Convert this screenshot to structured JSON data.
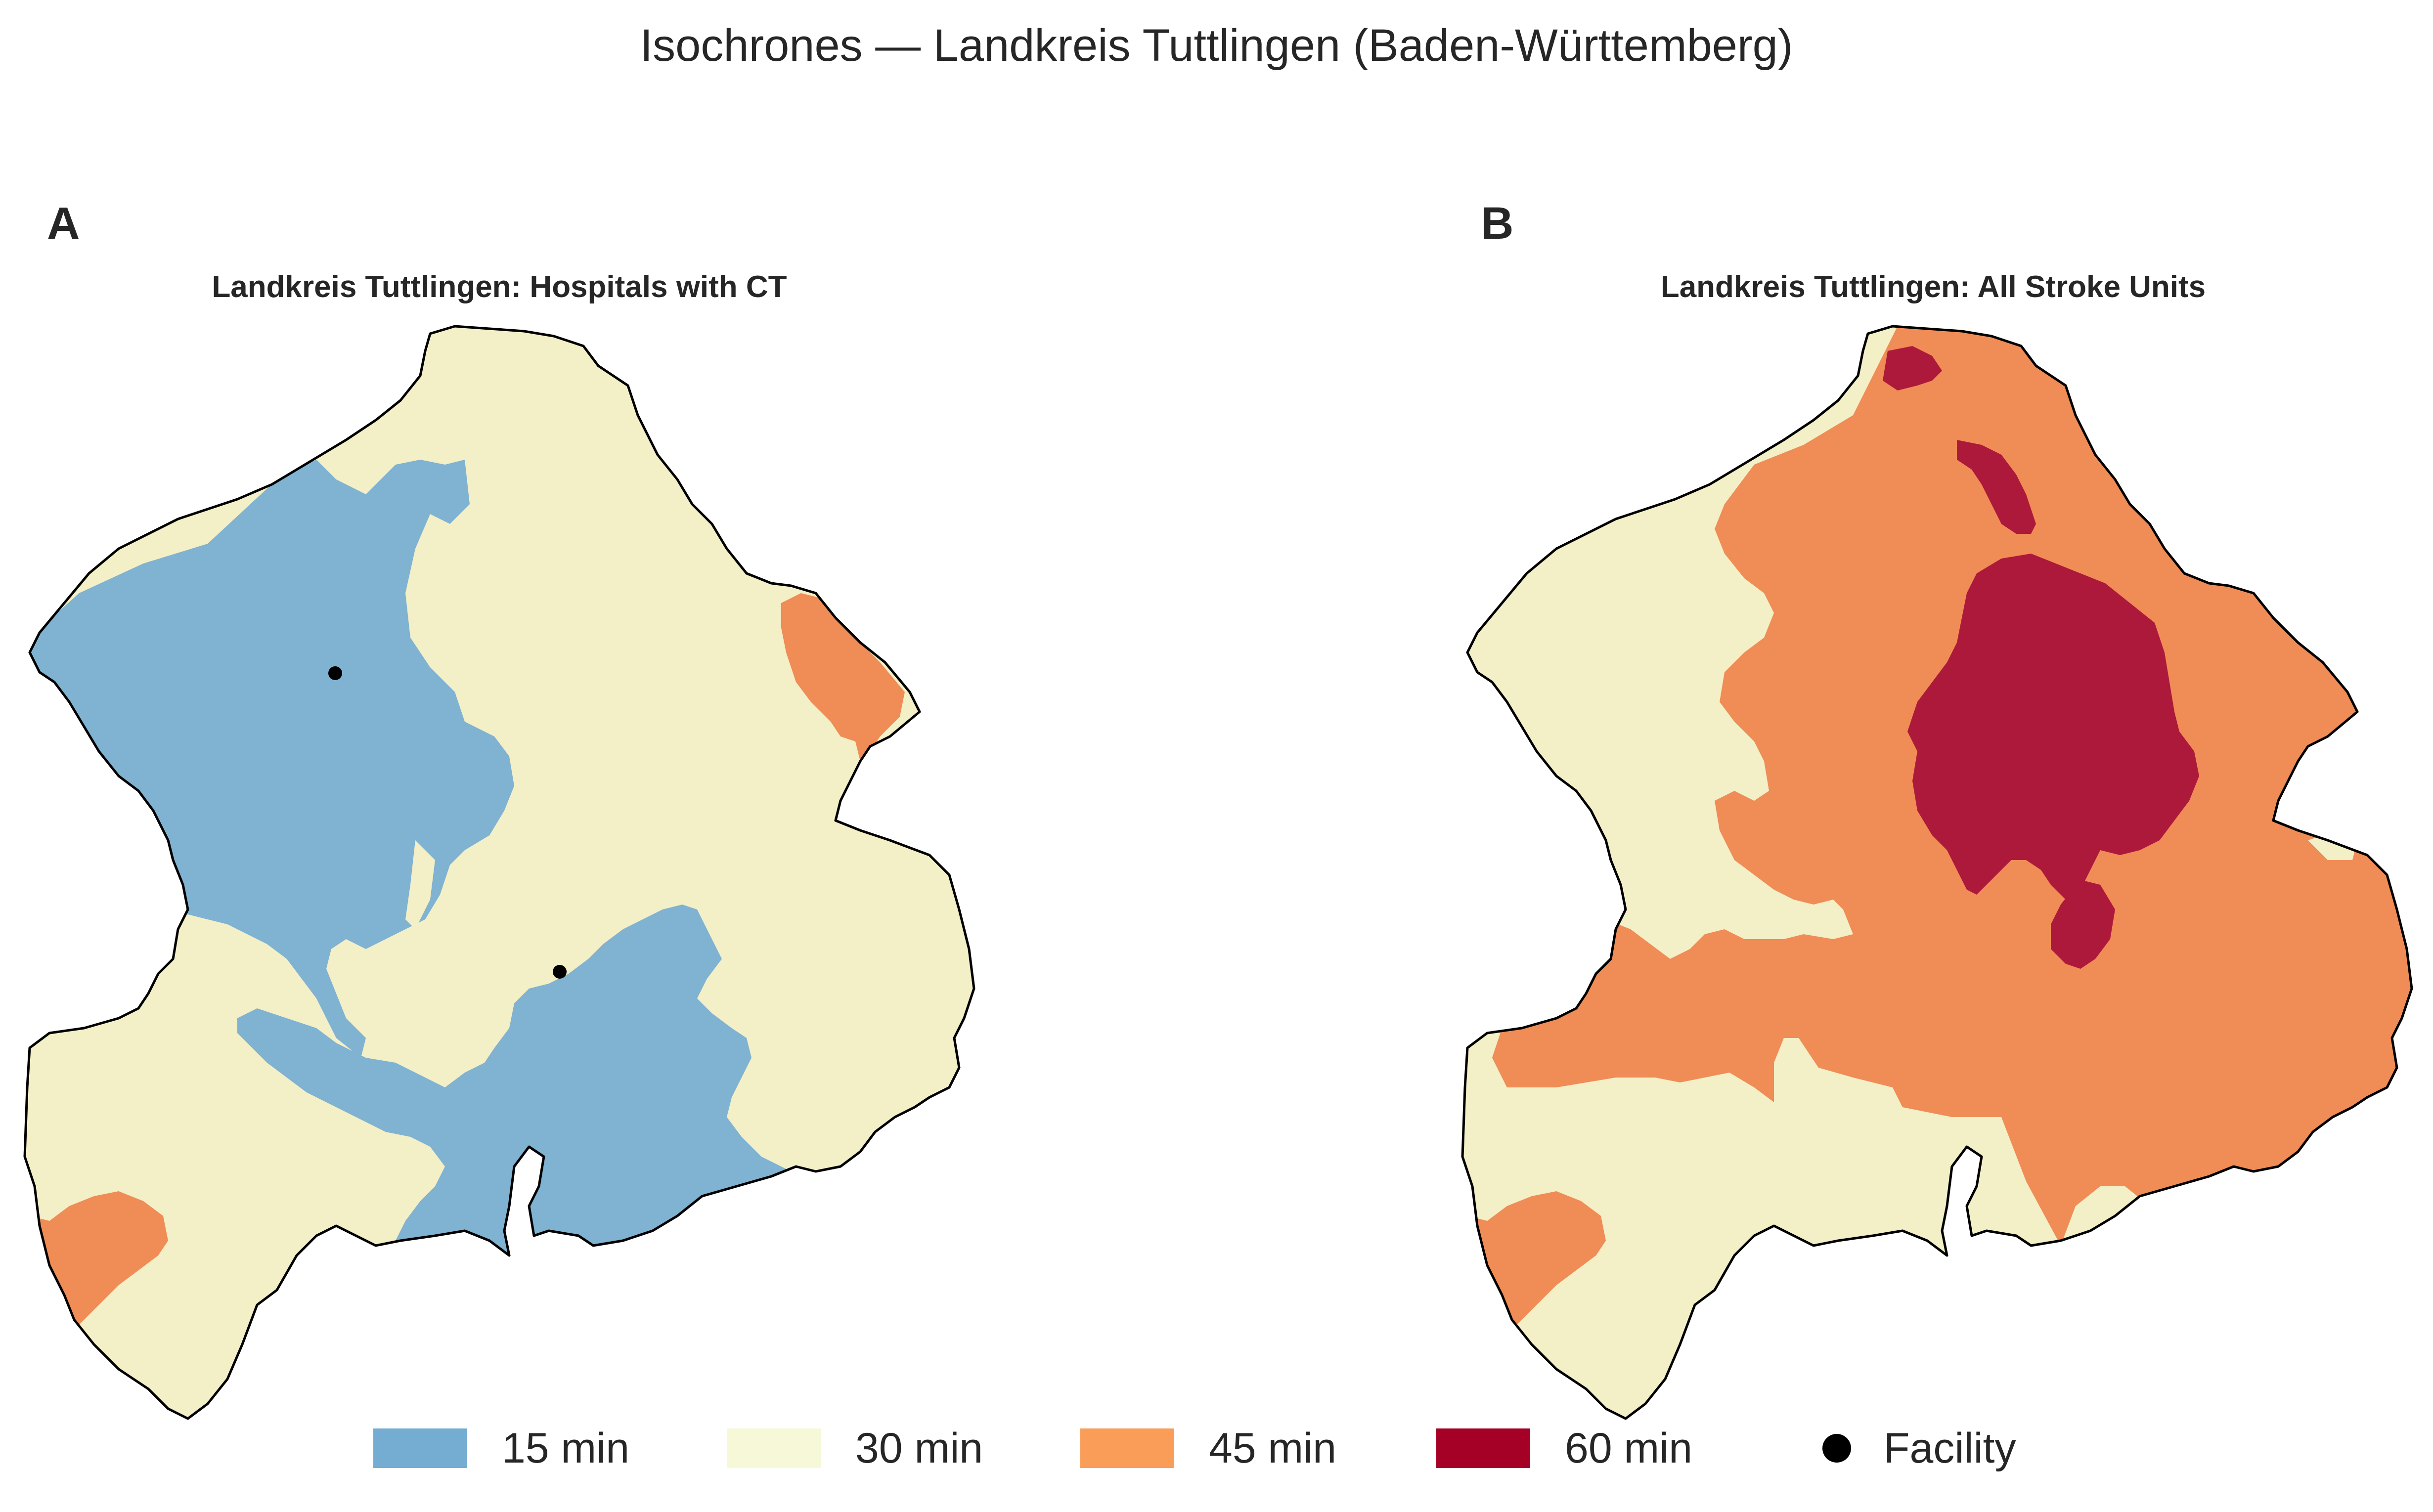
{
  "figure": {
    "title": "Isochrones — Landkreis Tuttlingen (Baden-Württemberg)"
  },
  "panels": [
    {
      "letter": "A",
      "title": "Landkreis Tuttlingen: Hospitals with CT"
    },
    {
      "letter": "B",
      "title": "Landkreis Tuttlingen: All Stroke Units"
    }
  ],
  "legend": [
    {
      "label": "15 min",
      "color": "#74add1"
    },
    {
      "label": "30 min",
      "color": "#f7f8d8"
    },
    {
      "label": "45 min",
      "color": "#f99d59"
    },
    {
      "label": "60 min",
      "color": "#a50026"
    },
    {
      "label": "Facility",
      "color": "#000000"
    }
  ],
  "colors": {
    "band_15": "#80b2d1",
    "band_30": "#f3efc7",
    "band_45": "#f08c56",
    "band_60": "#ad193b",
    "boundary": "#000000",
    "facility": "#000000"
  }
}
